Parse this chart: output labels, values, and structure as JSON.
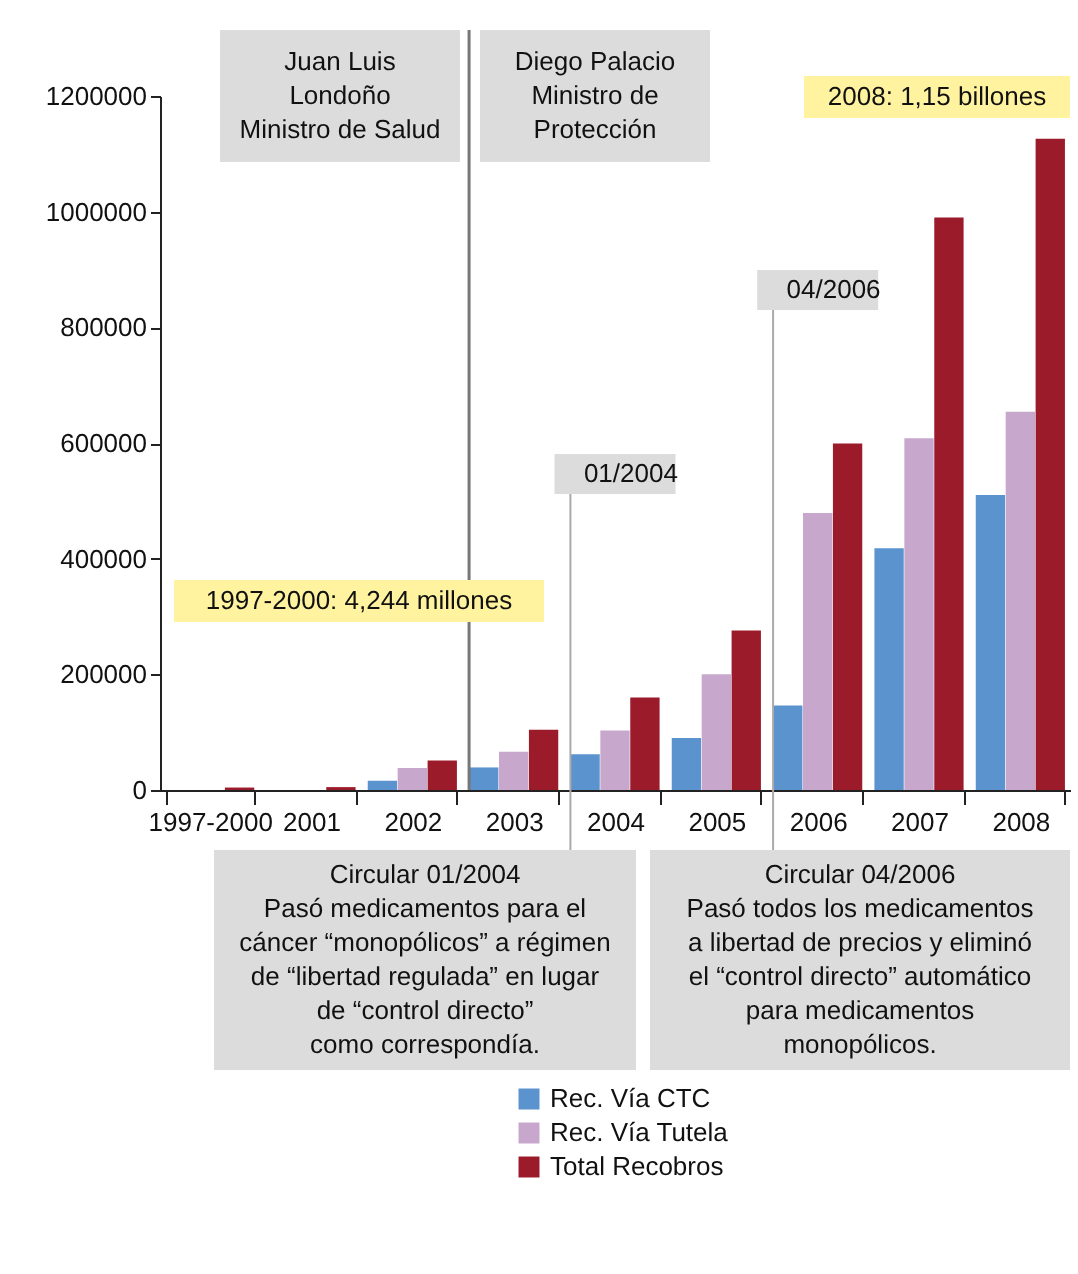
{
  "chart_data": {
    "type": "bar",
    "categories": [
      "1997-2000",
      "2001",
      "2002",
      "2003",
      "2004",
      "2005",
      "2006",
      "2007",
      "2008"
    ],
    "series": [
      {
        "name": "Rec. Vía CTC",
        "color": "#5b93cf",
        "values": [
          null,
          null,
          16000,
          39000,
          62000,
          90000,
          146000,
          418000,
          510000
        ]
      },
      {
        "name": "Rec. Vía Tutela",
        "color": "#c7a8cc",
        "values": [
          null,
          null,
          38000,
          66000,
          103000,
          200000,
          479000,
          608000,
          654000
        ]
      },
      {
        "name": "Total Recobros",
        "color": "#9b1b2a",
        "values": [
          4244,
          5000,
          51000,
          104000,
          160000,
          276000,
          599000,
          990000,
          1126000
        ]
      }
    ],
    "ylim": [
      0,
      1200000
    ],
    "yticks": [
      0,
      200000,
      400000,
      600000,
      800000,
      1000000,
      1200000
    ],
    "ref_lines": [
      {
        "axis": "x",
        "value": "2003",
        "label": null
      },
      {
        "axis": "x",
        "value": "2004",
        "label": "01/2004"
      },
      {
        "axis": "x",
        "value": "2006",
        "label": "04/2006"
      }
    ],
    "annotations": [
      "Juan Luis\nLondoño\nMinistro de Salud",
      "Diego Palacio\nMinistro de\nProtección",
      "2008: 1,15 billones",
      "1997-2000: 4,244 millones",
      "Circular 01/2004\nPasó medicamentos para el\ncáncer “monopólicos” a régimen\nde “libertad regulada” en lugar\nde “control directo”\ncomo correspondía.",
      "Circular 04/2006\nPasó todos los medicamentos\na libertad de precios y eliminó\nel “control directo” automático\npara medicamentos\nmonopólicos."
    ],
    "legend": "bottom"
  }
}
